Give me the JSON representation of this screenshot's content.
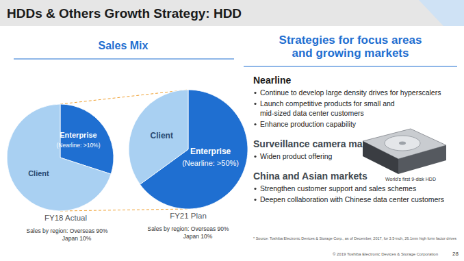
{
  "header": {
    "title": "HDDs & Others Growth Strategy: HDD"
  },
  "left_panel": {
    "title": "Sales Mix"
  },
  "chart_data": [
    {
      "type": "pie",
      "title": "FY18 Actual",
      "subtitle": [
        "Sales by region: Overseas 90%",
        "Japan 10%"
      ],
      "categories": [
        "Enterprise",
        "Client"
      ],
      "values": [
        30,
        70
      ],
      "colors": [
        "#1f6fd1",
        "#a9d0f2"
      ],
      "annotations": [
        "(Nearline: >10%)"
      ],
      "data_labels": false
    },
    {
      "type": "pie",
      "title": "FY21 Plan",
      "subtitle": [
        "Sales by region: Overseas 90%",
        "Japan 10%"
      ],
      "categories": [
        "Enterprise",
        "Client"
      ],
      "values": [
        65,
        35
      ],
      "colors": [
        "#1f6fd1",
        "#a9d0f2"
      ],
      "annotations": [
        "(Nearline: >50%)"
      ],
      "data_labels": false
    }
  ],
  "right_panel": {
    "title": [
      "Strategies for focus areas",
      "and growing markets"
    ],
    "sections": [
      {
        "heading": "Nearline",
        "bullets": [
          [
            "Continue to develop large density drives for hyperscalers"
          ],
          [
            "Launch competitive products for small and",
            "mid-sized data center customers"
          ],
          [
            "Enhance production capability"
          ]
        ]
      },
      {
        "heading": "Surveillance camera market",
        "bullets": [
          [
            "Widen product offering"
          ]
        ]
      },
      {
        "heading": "China and Asian markets",
        "bullets": [
          [
            "Strengthen customer support and sales schemes"
          ],
          [
            "Deepen collaboration with Chinese data center customers"
          ]
        ]
      }
    ],
    "image_caption": "World's first 9-disk HDD",
    "footnote": "* Source: Toshiba Electronic Devices & Storage Corp., as of December, 2017, for 3.5-inch, 26.1mm high form factor drives"
  },
  "footer": {
    "copyright": "© 2019 Toshiba Electronic Devices & Storage Corporation",
    "page": "28"
  }
}
